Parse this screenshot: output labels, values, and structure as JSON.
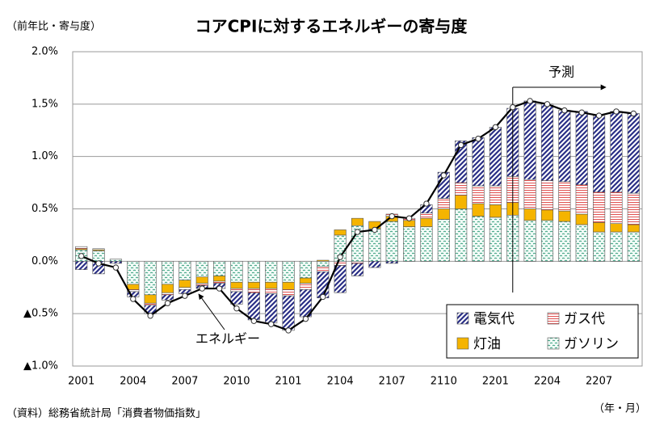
{
  "chart_data": {
    "type": "bar",
    "stacked": true,
    "title": "コアCPIに対するエネルギーの寄与度",
    "y_label": "（前年比・寄与度）",
    "x_label": "（年・月）",
    "source": "（資料）総務省統計局「消費者物価指数」",
    "categories": [
      "2001",
      null,
      null,
      "2004",
      null,
      null,
      "2007",
      null,
      null,
      "2010",
      null,
      null,
      "2101",
      null,
      null,
      "2104",
      null,
      null,
      "2107",
      null,
      null,
      "2110",
      null,
      null,
      "2201",
      null,
      null,
      "2204",
      null,
      null,
      "2207",
      null,
      null
    ],
    "series": [
      {
        "name": "ガソリン",
        "color": "#2e9a78",
        "values": [
          0.11,
          0.1,
          0.02,
          -0.22,
          -0.32,
          -0.22,
          -0.18,
          -0.15,
          -0.14,
          -0.2,
          -0.2,
          -0.2,
          -0.2,
          -0.16,
          -0.05,
          0.25,
          0.34,
          0.31,
          0.38,
          0.33,
          0.33,
          0.4,
          0.5,
          0.43,
          0.42,
          0.44,
          0.39,
          0.39,
          0.38,
          0.35,
          0.28,
          0.28,
          0.28
        ]
      },
      {
        "name": "灯油",
        "color": "#f5b400",
        "values": [
          0.01,
          0.01,
          0.0,
          -0.05,
          -0.08,
          -0.08,
          -0.07,
          -0.06,
          -0.05,
          -0.06,
          -0.06,
          -0.06,
          -0.07,
          -0.05,
          0.01,
          0.05,
          0.07,
          0.07,
          0.05,
          0.06,
          0.08,
          0.1,
          0.13,
          0.12,
          0.12,
          0.12,
          0.11,
          0.1,
          0.1,
          0.1,
          0.09,
          0.08,
          0.07
        ]
      },
      {
        "name": "ガス代",
        "color": "#e05050",
        "values": [
          0.02,
          0.01,
          0.0,
          -0.02,
          -0.02,
          -0.02,
          -0.02,
          -0.02,
          -0.02,
          -0.03,
          -0.04,
          -0.05,
          -0.06,
          -0.06,
          -0.05,
          -0.04,
          -0.02,
          0.0,
          0.02,
          0.02,
          0.05,
          0.1,
          0.12,
          0.17,
          0.18,
          0.25,
          0.28,
          0.28,
          0.28,
          0.28,
          0.29,
          0.3,
          0.3
        ]
      },
      {
        "name": "電気代",
        "color": "#2a2f86",
        "values": [
          -0.08,
          -0.12,
          -0.02,
          -0.05,
          -0.08,
          -0.05,
          -0.04,
          -0.03,
          -0.05,
          -0.12,
          -0.26,
          -0.28,
          -0.33,
          -0.26,
          -0.25,
          -0.26,
          -0.12,
          -0.06,
          -0.02,
          0.0,
          0.08,
          0.25,
          0.4,
          0.46,
          0.56,
          0.65,
          0.75,
          0.73,
          0.68,
          0.7,
          0.73,
          0.77,
          0.76
        ]
      }
    ],
    "line": {
      "name": "エネルギー",
      "color": "#000000",
      "values": [
        0.05,
        -0.02,
        -0.06,
        -0.36,
        -0.52,
        -0.4,
        -0.33,
        -0.26,
        -0.26,
        -0.45,
        -0.57,
        -0.6,
        -0.66,
        -0.55,
        -0.34,
        0.04,
        0.28,
        0.3,
        0.43,
        0.41,
        0.55,
        0.82,
        1.11,
        1.17,
        1.28,
        1.47,
        1.53,
        1.5,
        1.44,
        1.42,
        1.39,
        1.43,
        1.41
      ]
    },
    "forecast_label": "予測",
    "forecast_start": 25.5,
    "ylim": [
      -1.0,
      2.0
    ],
    "yticks": [
      {
        "value": -1.0,
        "label": "▲1.0%"
      },
      {
        "value": -0.5,
        "label": "▲0.5%"
      },
      {
        "value": 0.0,
        "label": "0.0%"
      },
      {
        "value": 0.5,
        "label": "0.5%"
      },
      {
        "value": 1.0,
        "label": "1.0%"
      },
      {
        "value": 1.5,
        "label": "1.5%"
      },
      {
        "value": 2.0,
        "label": "2.0%"
      }
    ],
    "grid": true,
    "legend": "lower right"
  }
}
